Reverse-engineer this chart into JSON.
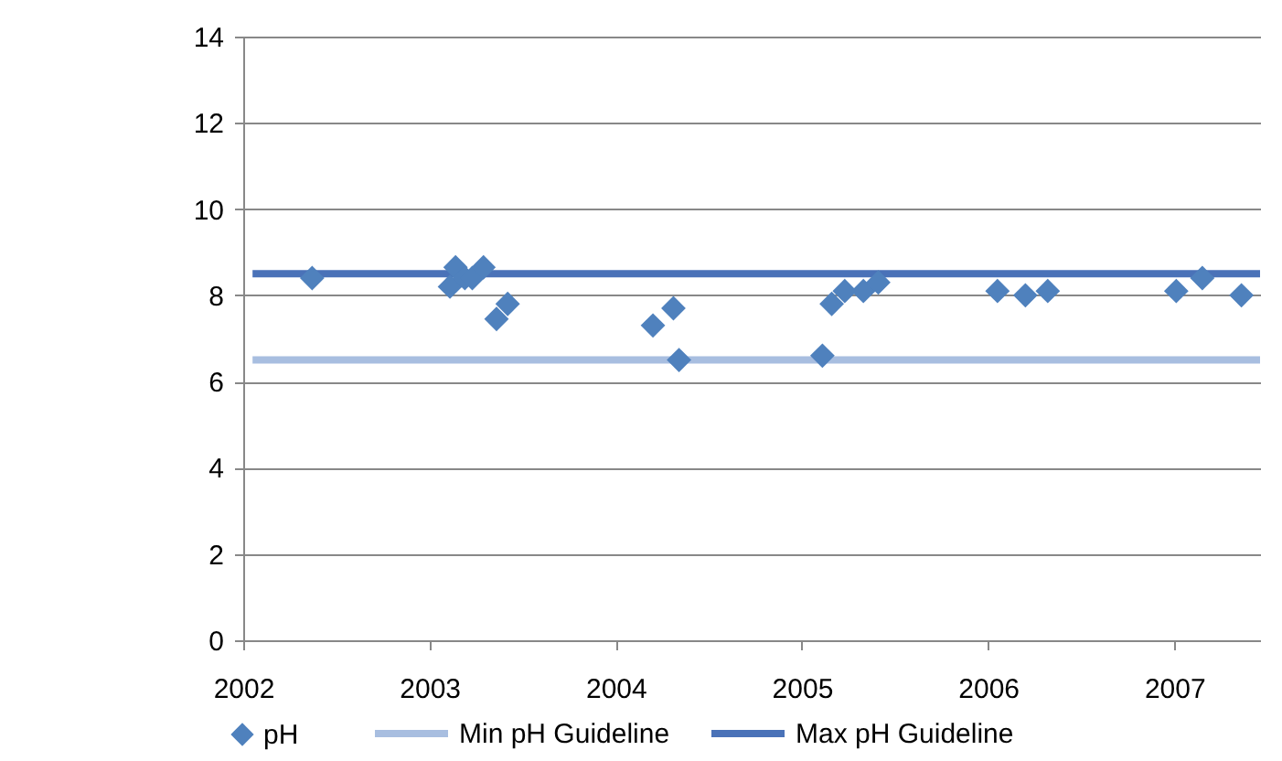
{
  "chart_data": {
    "type": "scatter",
    "grid": "y",
    "legend": "bottom",
    "xlim": [
      2002,
      2007.46
    ],
    "xticks": [
      2002,
      2003,
      2004,
      2005,
      2006,
      2007
    ],
    "ylim": [
      0,
      14
    ],
    "yticks": [
      0,
      2,
      4,
      6,
      8,
      10,
      12,
      14
    ],
    "series": [
      {
        "name": "pH",
        "color": "#4f81bd",
        "marker": "diamond",
        "x": [
          2002.37,
          2003.11,
          2003.14,
          2003.19,
          2003.23,
          2003.29,
          2003.36,
          2003.42,
          2004.2,
          2004.31,
          2004.34,
          2005.11,
          2005.16,
          2005.23,
          2005.33,
          2005.41,
          2006.05,
          2006.2,
          2006.32,
          2007.01,
          2007.15,
          2007.36
        ],
        "values": [
          8.4,
          8.2,
          8.65,
          8.4,
          8.4,
          8.65,
          7.45,
          7.8,
          7.3,
          7.7,
          6.5,
          6.6,
          7.8,
          8.1,
          8.1,
          8.3,
          8.1,
          8.0,
          8.1,
          8.1,
          8.4,
          8.0
        ]
      },
      {
        "name": "Min pH Guideline",
        "type": "line",
        "marker": "none",
        "color": "#a8bee0",
        "x": [
          2002.05,
          2007.46
        ],
        "values": [
          6.5,
          6.5
        ]
      },
      {
        "name": "Max pH Guideline",
        "type": "line",
        "marker": "none",
        "color": "#4a72b8",
        "x": [
          2002.05,
          2007.46
        ],
        "values": [
          8.5,
          8.5
        ]
      }
    ]
  }
}
